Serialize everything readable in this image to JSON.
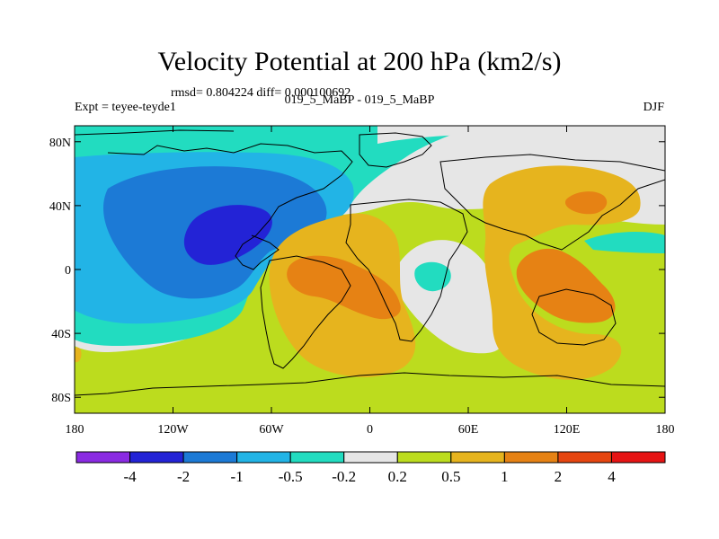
{
  "title": "Velocity Potential at 200 hPa (km2/s)",
  "stats": "rmsd= 0.804224 diff= 0.000100692",
  "left_label": "Expt = teyee-teyde1",
  "center_label": "019_5_MaBP - 019_5_MaBP",
  "right_label": "DJF",
  "lat_ticks": [
    {
      "label": "80N",
      "lat": 80
    },
    {
      "label": "40N",
      "lat": 40
    },
    {
      "label": "0",
      "lat": 0
    },
    {
      "label": "40S",
      "lat": -40
    },
    {
      "label": "80S",
      "lat": -80
    }
  ],
  "lon_ticks": [
    {
      "label": "180",
      "lon": -180
    },
    {
      "label": "120W",
      "lon": -120
    },
    {
      "label": "60W",
      "lon": -60
    },
    {
      "label": "0",
      "lon": 0
    },
    {
      "label": "60E",
      "lon": 60
    },
    {
      "label": "120E",
      "lon": 120
    },
    {
      "label": "180",
      "lon": 180
    }
  ],
  "colorbar": {
    "colors": [
      "#8a2be2",
      "#2323d6",
      "#1c7ad6",
      "#22b4e6",
      "#22dcc0",
      "#e6e6e6",
      "#bcdc1e",
      "#e6b41e",
      "#e68214",
      "#e64610",
      "#e61414"
    ],
    "labels": [
      "-4",
      "-2",
      "-1",
      "-0.5",
      "-0.2",
      "0.2",
      "0.5",
      "1",
      "2",
      "4"
    ]
  }
}
